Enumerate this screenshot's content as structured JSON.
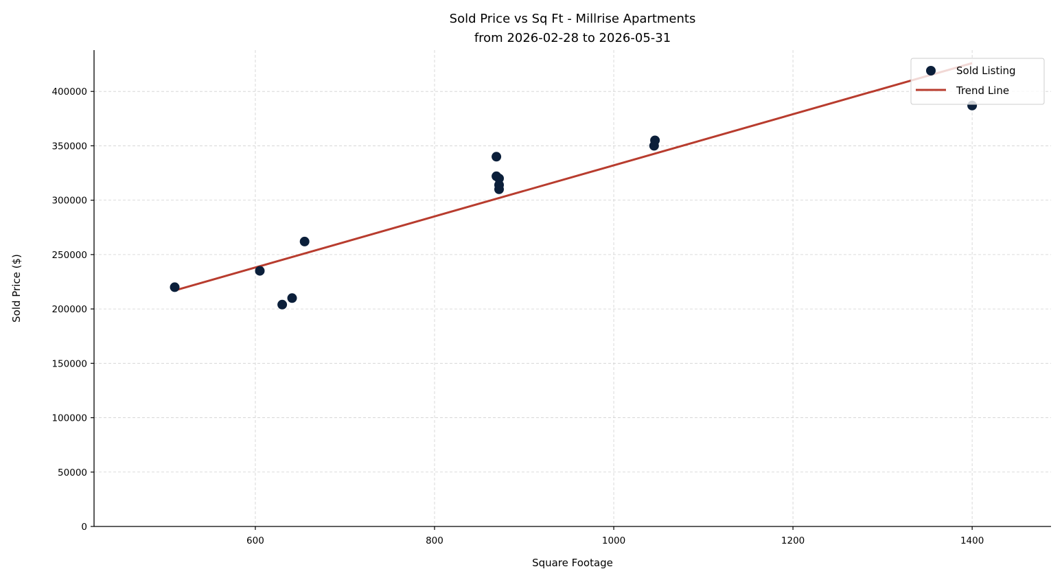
{
  "chart_data": {
    "type": "scatter",
    "title": "Sold Price vs Sq Ft - Millrise Apartments",
    "subtitle": "from 2026-02-28 to 2026-05-31",
    "xlabel": "Square Footage",
    "ylabel": "Sold Price ($)",
    "xlim": [
      420,
      1488
    ],
    "ylim": [
      0,
      438000
    ],
    "xticks": [
      600,
      800,
      1000,
      1200,
      1400
    ],
    "yticks": [
      0,
      50000,
      100000,
      150000,
      200000,
      250000,
      300000,
      350000,
      400000
    ],
    "grid": true,
    "legend_position": "top-right",
    "series": [
      {
        "name": "Sold Listing",
        "kind": "scatter",
        "color": "#0b1f3a",
        "points": [
          {
            "x": 510,
            "y": 220000
          },
          {
            "x": 605,
            "y": 235000
          },
          {
            "x": 630,
            "y": 204000
          },
          {
            "x": 641,
            "y": 210000
          },
          {
            "x": 655,
            "y": 262000
          },
          {
            "x": 869,
            "y": 340000
          },
          {
            "x": 869,
            "y": 322000
          },
          {
            "x": 872,
            "y": 320000
          },
          {
            "x": 872,
            "y": 314000
          },
          {
            "x": 872,
            "y": 310000
          },
          {
            "x": 1045,
            "y": 350000
          },
          {
            "x": 1046,
            "y": 355000
          },
          {
            "x": 1400,
            "y": 387000
          }
        ]
      },
      {
        "name": "Trend Line",
        "kind": "line",
        "color": "#b83c2e",
        "points": [
          {
            "x": 510,
            "y": 217000
          },
          {
            "x": 1400,
            "y": 426000
          }
        ]
      }
    ]
  }
}
